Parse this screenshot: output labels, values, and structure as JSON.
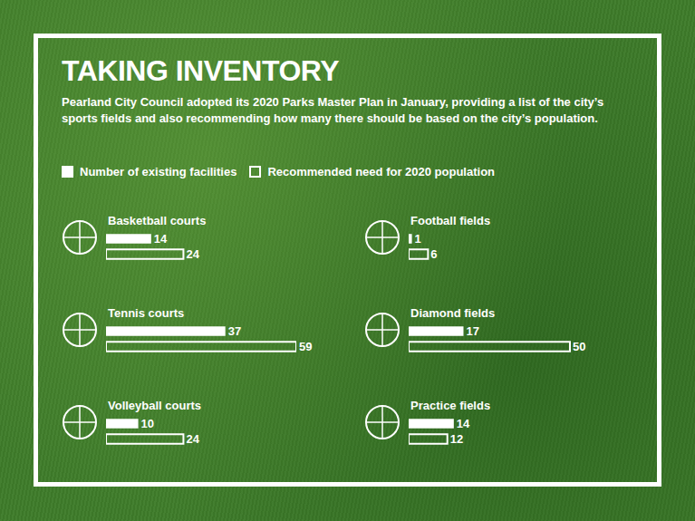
{
  "chart_data": {
    "type": "bar",
    "title": "TAKING INVENTORY",
    "subtitle": "Pearland City Council adopted its 2020 Parks Master Plan in January, providing a list of the city’s sports fields and also recommending how many there should be based on the city’s population.",
    "orientation": "horizontal",
    "categories": [
      "Basketball courts",
      "Tennis courts",
      "Volleyball courts",
      "Football fields",
      "Diamond fields",
      "Practice fields"
    ],
    "series": [
      {
        "name": "Number of existing facilities",
        "color": "#ffffff",
        "marker": "filled",
        "values": [
          14,
          37,
          10,
          1,
          17,
          14
        ]
      },
      {
        "name": "Recommended need for 2020 population",
        "color": "#ffffff",
        "marker": "outline",
        "values": [
          24,
          59,
          24,
          6,
          50,
          12
        ]
      }
    ],
    "data_labels": true,
    "tick_labels": false,
    "grid": false,
    "legend": "top"
  }
}
